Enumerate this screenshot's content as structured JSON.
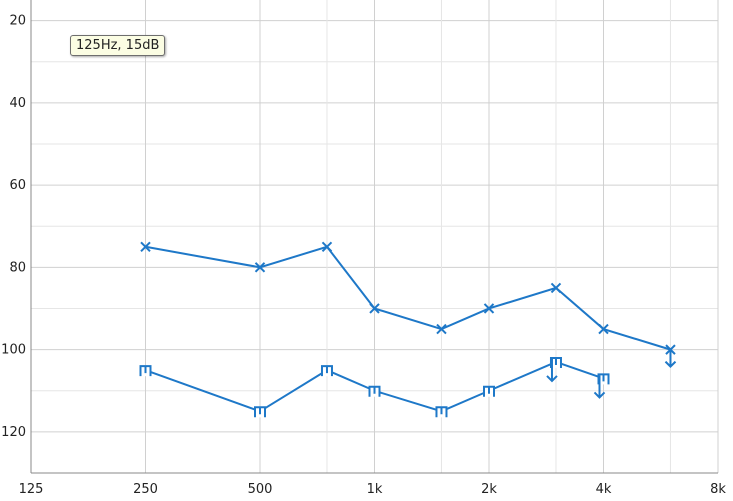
{
  "tooltip": {
    "text": "125Hz, 15dB"
  },
  "chart_data": {
    "type": "line",
    "title": "",
    "xlabel": "",
    "ylabel": "",
    "x_scale": "log2",
    "x_ticks": [
      {
        "value": 125,
        "label": "125"
      },
      {
        "value": 250,
        "label": "250"
      },
      {
        "value": 500,
        "label": "500"
      },
      {
        "value": 1000,
        "label": "1k"
      },
      {
        "value": 2000,
        "label": "2k"
      },
      {
        "value": 4000,
        "label": "4k"
      },
      {
        "value": 8000,
        "label": "8k"
      }
    ],
    "x_minor_ticks": [
      750,
      1500,
      3000,
      6000
    ],
    "xlim": [
      125,
      8000
    ],
    "y_inverted": true,
    "ylim": [
      15,
      130
    ],
    "y_ticks": [
      20,
      40,
      60,
      80,
      100,
      120
    ],
    "y_minor_ticks": [
      30,
      50,
      70,
      90,
      110
    ],
    "grid": true,
    "legend": "none",
    "color": "#1e78c8",
    "series": [
      {
        "marker": "x",
        "points": [
          {
            "x": 250,
            "y": 75
          },
          {
            "x": 500,
            "y": 80
          },
          {
            "x": 750,
            "y": 75
          },
          {
            "x": 1000,
            "y": 90
          },
          {
            "x": 1500,
            "y": 95
          },
          {
            "x": 2000,
            "y": 90
          },
          {
            "x": 3000,
            "y": 85
          },
          {
            "x": 4000,
            "y": 95
          },
          {
            "x": 6000,
            "y": 100,
            "no_response": true
          }
        ]
      },
      {
        "marker": "bracket",
        "points": [
          {
            "x": 250,
            "y": 105
          },
          {
            "x": 500,
            "y": 115
          },
          {
            "x": 750,
            "y": 105
          },
          {
            "x": 1000,
            "y": 110
          },
          {
            "x": 1500,
            "y": 115
          },
          {
            "x": 2000,
            "y": 110
          },
          {
            "x": 3000,
            "y": 103,
            "no_response": true
          },
          {
            "x": 4000,
            "y": 107,
            "no_response": true
          }
        ]
      }
    ]
  }
}
